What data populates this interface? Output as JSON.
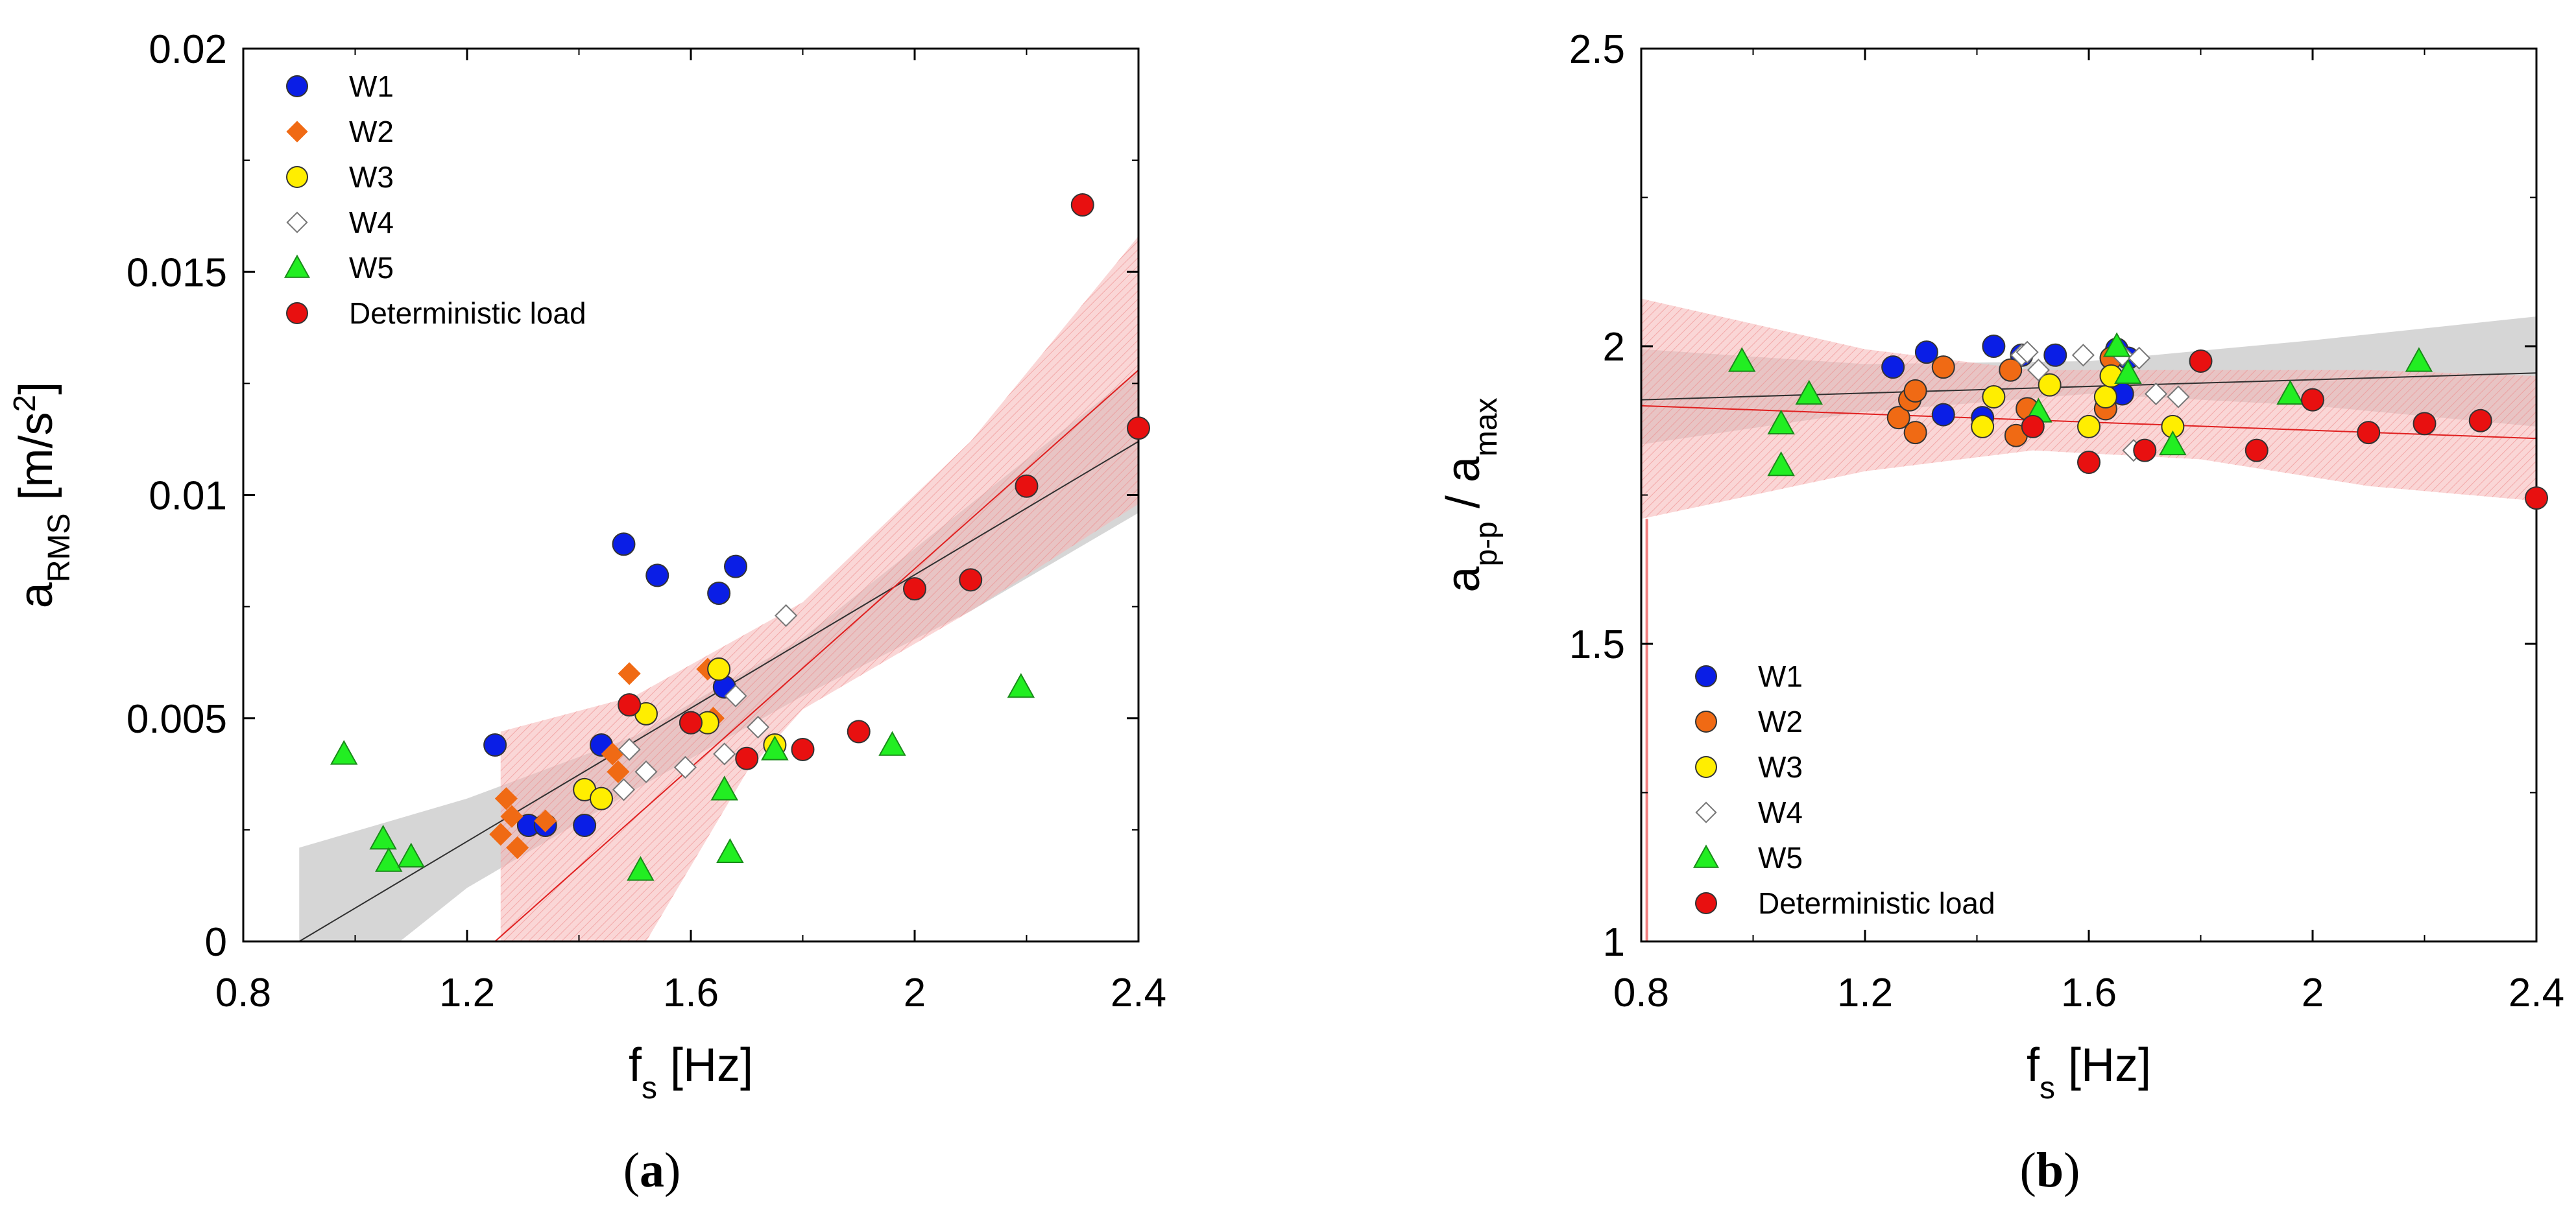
{
  "colors": {
    "W1": "#0a1ee6",
    "W2": "#f06a14",
    "W3": "#ffee00",
    "W4": "#ffffff",
    "W5": "#22ee22",
    "Deterministic load": "#e81010",
    "ci_gray": "#c8c8c8",
    "ci_red": "#f6b4b4",
    "fit_gray": "#303030",
    "fit_red": "#e02020"
  },
  "chart_data": [
    {
      "id": "a",
      "type": "scatter",
      "caption": "a",
      "xlabel": {
        "base": "f",
        "sub": "s",
        "unit": " [Hz]"
      },
      "ylabel": {
        "base": "a",
        "sub": "RMS",
        "unit_pre": " [m/s",
        "sup": "2",
        "unit_post": "]"
      },
      "xlim": [
        0.8,
        2.4
      ],
      "ylim": [
        0,
        0.02
      ],
      "xticks": [
        "0.8",
        "1.2",
        "1.6",
        "2",
        "2.4"
      ],
      "xtick_values": [
        0.8,
        1.2,
        1.6,
        2.0,
        2.4
      ],
      "yticks": [
        "0",
        "0.005",
        "0.01",
        "0.015",
        "0.02"
      ],
      "ytick_values": [
        0,
        0.005,
        0.01,
        0.015,
        0.02
      ],
      "legend_position": "top-left",
      "series": [
        {
          "name": "W1",
          "marker": "circle",
          "points": [
            [
              1.25,
              0.0044
            ],
            [
              1.31,
              0.0026
            ],
            [
              1.34,
              0.0026
            ],
            [
              1.41,
              0.0026
            ],
            [
              1.44,
              0.0044
            ],
            [
              1.48,
              0.0089
            ],
            [
              1.54,
              0.0082
            ],
            [
              1.65,
              0.0078
            ],
            [
              1.66,
              0.0057
            ],
            [
              1.68,
              0.0084
            ]
          ]
        },
        {
          "name": "W2",
          "marker": "diamond",
          "points": [
            [
              1.26,
              0.0024
            ],
            [
              1.27,
              0.0032
            ],
            [
              1.28,
              0.0028
            ],
            [
              1.29,
              0.0021
            ],
            [
              1.34,
              0.0027
            ],
            [
              1.46,
              0.0042
            ],
            [
              1.47,
              0.0038
            ],
            [
              1.49,
              0.006
            ],
            [
              1.63,
              0.0061
            ],
            [
              1.64,
              0.005
            ]
          ]
        },
        {
          "name": "W3",
          "marker": "circle",
          "points": [
            [
              1.41,
              0.0034
            ],
            [
              1.44,
              0.0032
            ],
            [
              1.52,
              0.0051
            ],
            [
              1.6,
              0.0049
            ],
            [
              1.63,
              0.0049
            ],
            [
              1.65,
              0.0061
            ],
            [
              1.75,
              0.0044
            ]
          ]
        },
        {
          "name": "W4",
          "marker": "diamond",
          "points": [
            [
              1.48,
              0.0034
            ],
            [
              1.49,
              0.0043
            ],
            [
              1.52,
              0.0038
            ],
            [
              1.59,
              0.0039
            ],
            [
              1.66,
              0.0042
            ],
            [
              1.68,
              0.0055
            ],
            [
              1.72,
              0.0048
            ],
            [
              1.77,
              0.0073
            ]
          ]
        },
        {
          "name": "W5",
          "marker": "triangle",
          "points": [
            [
              0.98,
              0.0042
            ],
            [
              1.05,
              0.0023
            ],
            [
              1.06,
              0.0018
            ],
            [
              1.1,
              0.0019
            ],
            [
              1.51,
              0.0016
            ],
            [
              1.66,
              0.0034
            ],
            [
              1.67,
              0.002
            ],
            [
              1.75,
              0.0043
            ],
            [
              1.96,
              0.0044
            ],
            [
              2.19,
              0.0057
            ]
          ]
        },
        {
          "name": "Deterministic load",
          "marker": "circle",
          "points": [
            [
              1.49,
              0.0053
            ],
            [
              1.6,
              0.0049
            ],
            [
              1.7,
              0.0041
            ],
            [
              1.8,
              0.0043
            ],
            [
              1.9,
              0.0047
            ],
            [
              2.0,
              0.0079
            ],
            [
              2.1,
              0.0081
            ],
            [
              2.2,
              0.0102
            ],
            [
              2.3,
              0.0165
            ],
            [
              2.4,
              0.0115
            ]
          ]
        }
      ],
      "fits": [
        {
          "name": "gray",
          "line": [
            [
              0.9,
              0.0
            ],
            [
              2.4,
              0.0112
            ]
          ],
          "band_upper": [
            [
              0.9,
              0.0021
            ],
            [
              1.2,
              0.0032
            ],
            [
              1.5,
              0.0046
            ],
            [
              1.8,
              0.0068
            ],
            [
              2.1,
              0.0098
            ],
            [
              2.4,
              0.0128
            ]
          ],
          "band_lower": [
            [
              0.9,
              0.0
            ],
            [
              1.08,
              0.0
            ],
            [
              1.2,
              0.0012
            ],
            [
              1.5,
              0.0034
            ],
            [
              1.8,
              0.0055
            ],
            [
              2.1,
              0.0074
            ],
            [
              2.4,
              0.0096
            ]
          ]
        },
        {
          "name": "red",
          "line": [
            [
              1.25,
              0.0
            ],
            [
              2.4,
              0.0128
            ]
          ],
          "band_upper": [
            [
              1.26,
              0.0047
            ],
            [
              1.5,
              0.0055
            ],
            [
              1.8,
              0.0076
            ],
            [
              2.1,
              0.0112
            ],
            [
              2.4,
              0.0158
            ]
          ],
          "band_lower": [
            [
              1.26,
              0.0
            ],
            [
              1.52,
              0.0
            ],
            [
              1.7,
              0.0038
            ],
            [
              1.8,
              0.0052
            ],
            [
              2.1,
              0.0074
            ],
            [
              2.4,
              0.0098
            ]
          ]
        }
      ]
    },
    {
      "id": "b",
      "type": "scatter",
      "caption": "b",
      "xlabel": {
        "base": "f",
        "sub": "s",
        "unit": " [Hz]"
      },
      "ylabel": {
        "base1": "a",
        "sub1": "p-p",
        "mid": " / ",
        "base2": "a",
        "sub2": "max"
      },
      "xlim": [
        0.8,
        2.4
      ],
      "ylim": [
        1,
        2.5
      ],
      "xticks": [
        "0.8",
        "1.2",
        "1.6",
        "2",
        "2.4"
      ],
      "xtick_values": [
        0.8,
        1.2,
        1.6,
        2.0,
        2.4
      ],
      "yticks": [
        "1",
        "1.5",
        "2",
        "2.5"
      ],
      "ytick_values": [
        1.0,
        1.5,
        2.0,
        2.5
      ],
      "legend_position": "bottom-left",
      "series": [
        {
          "name": "W1",
          "marker": "circle",
          "points": [
            [
              1.25,
              1.965
            ],
            [
              1.31,
              1.99
            ],
            [
              1.34,
              1.885
            ],
            [
              1.41,
              1.88
            ],
            [
              1.43,
              2.0
            ],
            [
              1.48,
              1.985
            ],
            [
              1.54,
              1.985
            ],
            [
              1.65,
              1.995
            ],
            [
              1.66,
              1.92
            ],
            [
              1.67,
              1.98
            ]
          ]
        },
        {
          "name": "W2",
          "marker": "circle_orange",
          "points": [
            [
              1.26,
              1.88
            ],
            [
              1.28,
              1.91
            ],
            [
              1.29,
              1.925
            ],
            [
              1.29,
              1.855
            ],
            [
              1.34,
              1.965
            ],
            [
              1.46,
              1.96
            ],
            [
              1.47,
              1.85
            ],
            [
              1.49,
              1.895
            ],
            [
              1.63,
              1.895
            ],
            [
              1.64,
              1.98
            ]
          ]
        },
        {
          "name": "W3",
          "marker": "circle",
          "points": [
            [
              1.41,
              1.865
            ],
            [
              1.43,
              1.915
            ],
            [
              1.53,
              1.935
            ],
            [
              1.6,
              1.865
            ],
            [
              1.63,
              1.915
            ],
            [
              1.64,
              1.95
            ],
            [
              1.75,
              1.865
            ]
          ]
        },
        {
          "name": "W4",
          "marker": "diamond",
          "points": [
            [
              1.48,
              1.985
            ],
            [
              1.49,
              1.99
            ],
            [
              1.51,
              1.96
            ],
            [
              1.59,
              1.985
            ],
            [
              1.66,
              1.985
            ],
            [
              1.68,
              1.825
            ],
            [
              1.69,
              1.98
            ],
            [
              1.72,
              1.92
            ],
            [
              1.76,
              1.915
            ]
          ]
        },
        {
          "name": "W5",
          "marker": "triangle",
          "points": [
            [
              0.98,
              1.975
            ],
            [
              1.05,
              1.87
            ],
            [
              1.05,
              1.8
            ],
            [
              1.1,
              1.92
            ],
            [
              1.51,
              1.89
            ],
            [
              1.65,
              2.0
            ],
            [
              1.67,
              1.955
            ],
            [
              1.75,
              1.835
            ],
            [
              1.96,
              1.92
            ],
            [
              2.19,
              1.975
            ]
          ]
        },
        {
          "name": "Deterministic load",
          "marker": "circle",
          "points": [
            [
              1.5,
              1.865
            ],
            [
              1.6,
              1.805
            ],
            [
              1.7,
              1.825
            ],
            [
              1.8,
              1.975
            ],
            [
              1.9,
              1.825
            ],
            [
              2.0,
              1.91
            ],
            [
              2.1,
              1.855
            ],
            [
              2.2,
              1.87
            ],
            [
              2.3,
              1.875
            ],
            [
              2.4,
              1.745
            ]
          ]
        }
      ],
      "fits": [
        {
          "name": "gray",
          "line": [
            [
              0.8,
              1.91
            ],
            [
              2.4,
              1.955
            ]
          ],
          "band_upper": [
            [
              0.8,
              1.995
            ],
            [
              1.2,
              1.97
            ],
            [
              1.6,
              1.975
            ],
            [
              2.0,
              2.01
            ],
            [
              2.4,
              2.05
            ]
          ],
          "band_lower": [
            [
              0.8,
              1.835
            ],
            [
              1.2,
              1.89
            ],
            [
              1.6,
              1.92
            ],
            [
              2.0,
              1.9
            ],
            [
              2.4,
              1.865
            ]
          ]
        },
        {
          "name": "red",
          "line": [
            [
              0.8,
              1.9
            ],
            [
              2.4,
              1.845
            ]
          ],
          "band_upper": [
            [
              0.8,
              2.08
            ],
            [
              1.2,
              1.995
            ],
            [
              1.5,
              1.96
            ],
            [
              1.8,
              1.96
            ],
            [
              2.1,
              1.96
            ],
            [
              2.4,
              1.95
            ]
          ],
          "band_lower": [
            [
              0.8,
              1.71
            ],
            [
              1.2,
              1.79
            ],
            [
              1.5,
              1.825
            ],
            [
              1.8,
              1.81
            ],
            [
              2.1,
              1.765
            ],
            [
              2.4,
              1.74
            ]
          ]
        }
      ]
    }
  ]
}
